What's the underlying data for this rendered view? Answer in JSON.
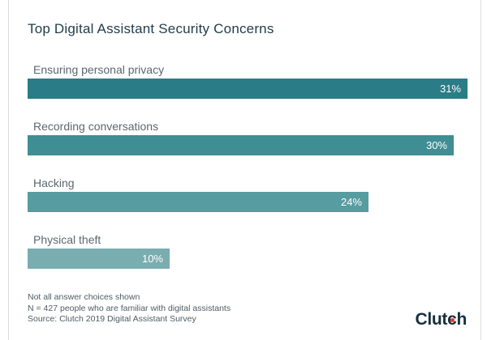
{
  "chart_data": {
    "type": "bar",
    "orientation": "horizontal",
    "title": "Top Digital Assistant Security Concerns",
    "categories": [
      "Ensuring personal privacy",
      "Recording conversations",
      "Hacking",
      "Physical theft"
    ],
    "values": [
      31,
      30,
      24,
      10
    ],
    "value_labels": [
      "31%",
      "30%",
      "24%",
      "10%"
    ],
    "bar_colors": [
      "#2a7d86",
      "#3f8e94",
      "#579ca0",
      "#7aadb0"
    ],
    "xlim": [
      0,
      31
    ],
    "grid": false,
    "legend": false,
    "value_label_position": "inside-end"
  },
  "footer": {
    "notes": [
      "Not all answer choices shown",
      "N = 427 people who are familiar with digital assistants",
      "Source: Clutch 2019 Digital Assistant Survey"
    ],
    "brand": "Clutch",
    "brand_parts": [
      "Clut",
      "c",
      "h"
    ]
  },
  "colors": {
    "background": "#ffffff",
    "card_border": "#dadee0",
    "title_text": "#223d49",
    "label_text": "#5b6770",
    "note_text": "#4e5c63",
    "bar_value_text": "#ffffff",
    "brand_navy": "#16303c",
    "brand_dot_red": "#ee3424"
  }
}
